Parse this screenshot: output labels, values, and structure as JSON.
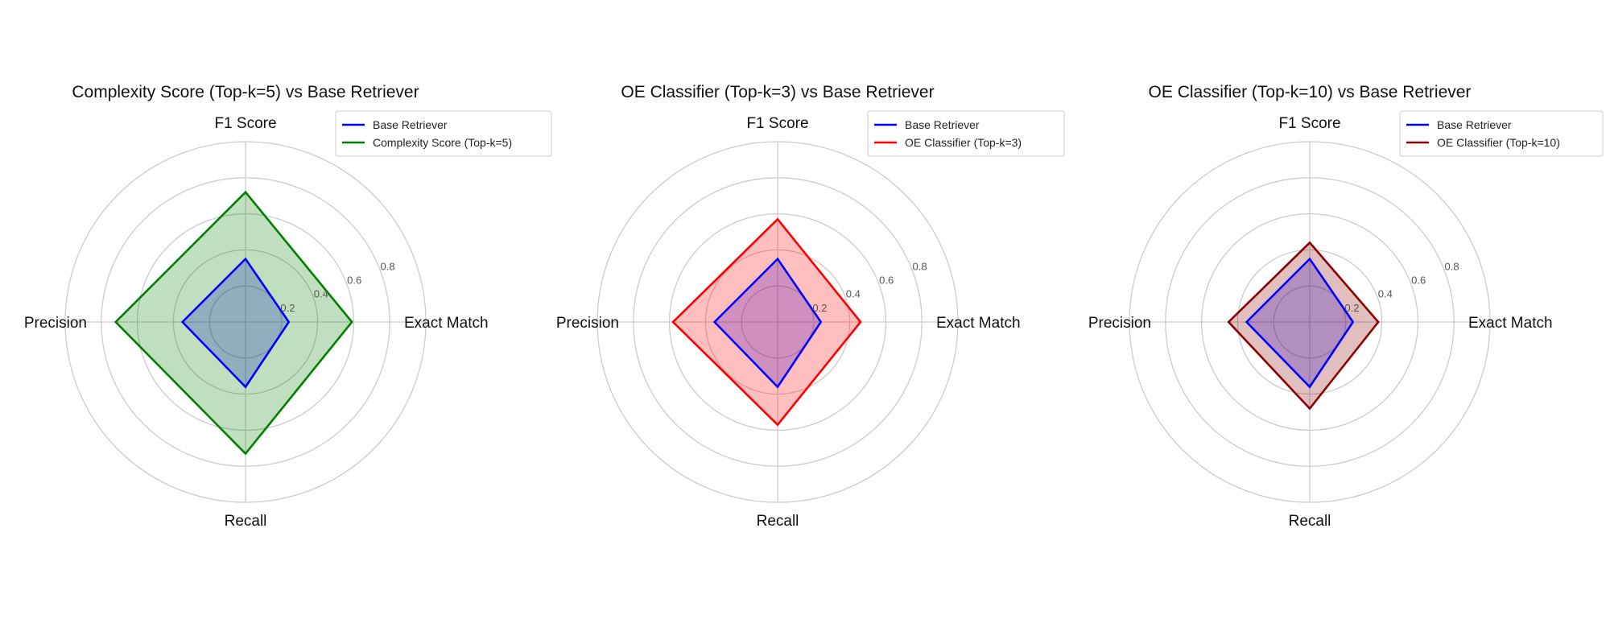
{
  "chart_data": [
    {
      "type": "radar",
      "title": "Complexity Score (Top-k=5) vs Base Retriever",
      "axes": [
        "Exact Match",
        "F1 Score",
        "Precision",
        "Recall"
      ],
      "rlim": [
        0,
        1.0
      ],
      "radial_ticks": [
        0.2,
        0.4,
        0.6,
        0.8
      ],
      "radial_tick_labels": [
        "0.2",
        "0.4",
        "0.6",
        "0.8"
      ],
      "grid": true,
      "legend_position": "top-right",
      "series": [
        {
          "name": "Base Retriever",
          "color": "#0000ff",
          "values": [
            0.24,
            0.35,
            0.35,
            0.36
          ]
        },
        {
          "name": "Complexity Score (Top-k=5)",
          "color": "#008000",
          "values": [
            0.59,
            0.72,
            0.72,
            0.73
          ]
        }
      ]
    },
    {
      "type": "radar",
      "title": "OE Classifier (Top-k=3) vs Base Retriever",
      "axes": [
        "Exact Match",
        "F1 Score",
        "Precision",
        "Recall"
      ],
      "rlim": [
        0,
        1.0
      ],
      "radial_ticks": [
        0.2,
        0.4,
        0.6,
        0.8
      ],
      "radial_tick_labels": [
        "0.2",
        "0.4",
        "0.6",
        "0.8"
      ],
      "grid": true,
      "legend_position": "top-right",
      "series": [
        {
          "name": "Base Retriever",
          "color": "#0000ff",
          "values": [
            0.24,
            0.35,
            0.35,
            0.36
          ]
        },
        {
          "name": "OE Classifier (Top-k=3)",
          "color": "#ff0000",
          "values": [
            0.46,
            0.57,
            0.58,
            0.57
          ]
        }
      ]
    },
    {
      "type": "radar",
      "title": "OE Classifier (Top-k=10) vs Base Retriever",
      "axes": [
        "Exact Match",
        "F1 Score",
        "Precision",
        "Recall"
      ],
      "rlim": [
        0,
        1.0
      ],
      "radial_ticks": [
        0.2,
        0.4,
        0.6,
        0.8
      ],
      "radial_tick_labels": [
        "0.2",
        "0.4",
        "0.6",
        "0.8"
      ],
      "grid": true,
      "legend_position": "top-right",
      "series": [
        {
          "name": "Base Retriever",
          "color": "#0000ff",
          "values": [
            0.24,
            0.35,
            0.35,
            0.36
          ]
        },
        {
          "name": "OE Classifier (Top-k=10)",
          "color": "#8b0000",
          "values": [
            0.38,
            0.44,
            0.45,
            0.48
          ]
        }
      ]
    }
  ]
}
